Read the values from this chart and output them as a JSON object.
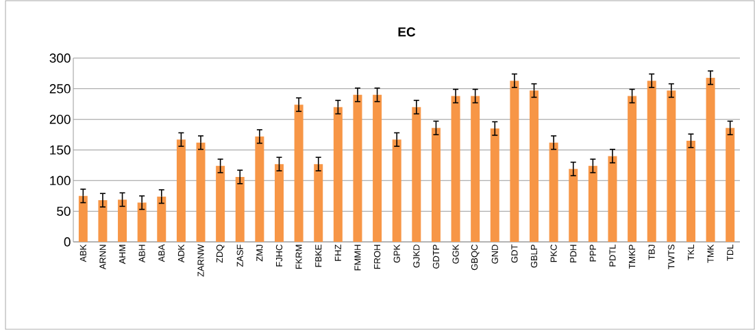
{
  "chart_data": {
    "type": "bar",
    "title": "EC",
    "categories": [
      "ABK",
      "ARNN",
      "AHM",
      "ABH",
      "ABA",
      "ADK",
      "ZARNW",
      "ZDQ",
      "ZASF",
      "ZMJ",
      "FJHC",
      "FKRM",
      "FBKE",
      "FHZ",
      "FMMH",
      "FROH",
      "GPK",
      "GJKD",
      "GDTP",
      "GGK",
      "GBQC",
      "GND",
      "GDT",
      "GBLP",
      "PKC",
      "PDH",
      "PPP",
      "PDTL",
      "TMKP",
      "TBJ",
      "TWTS",
      "TKL",
      "TMK",
      "TDL"
    ],
    "values": [
      75,
      68,
      69,
      64,
      74,
      167,
      162,
      124,
      106,
      172,
      127,
      224,
      127,
      220,
      240,
      240,
      167,
      220,
      186,
      238,
      238,
      185,
      263,
      247,
      162,
      119,
      124,
      140,
      238,
      263,
      247,
      165,
      268,
      186
    ],
    "errors": [
      11,
      11,
      11,
      11,
      11,
      11,
      11,
      11,
      11,
      11,
      11,
      11,
      11,
      11,
      11,
      11,
      11,
      11,
      11,
      11,
      11,
      11,
      11,
      11,
      11,
      11,
      11,
      11,
      11,
      11,
      11,
      11,
      11,
      11
    ],
    "color": "#f79646",
    "ylim": [
      0,
      300
    ],
    "yticks": [
      0,
      50,
      100,
      150,
      200,
      250,
      300
    ],
    "grid": "y"
  }
}
